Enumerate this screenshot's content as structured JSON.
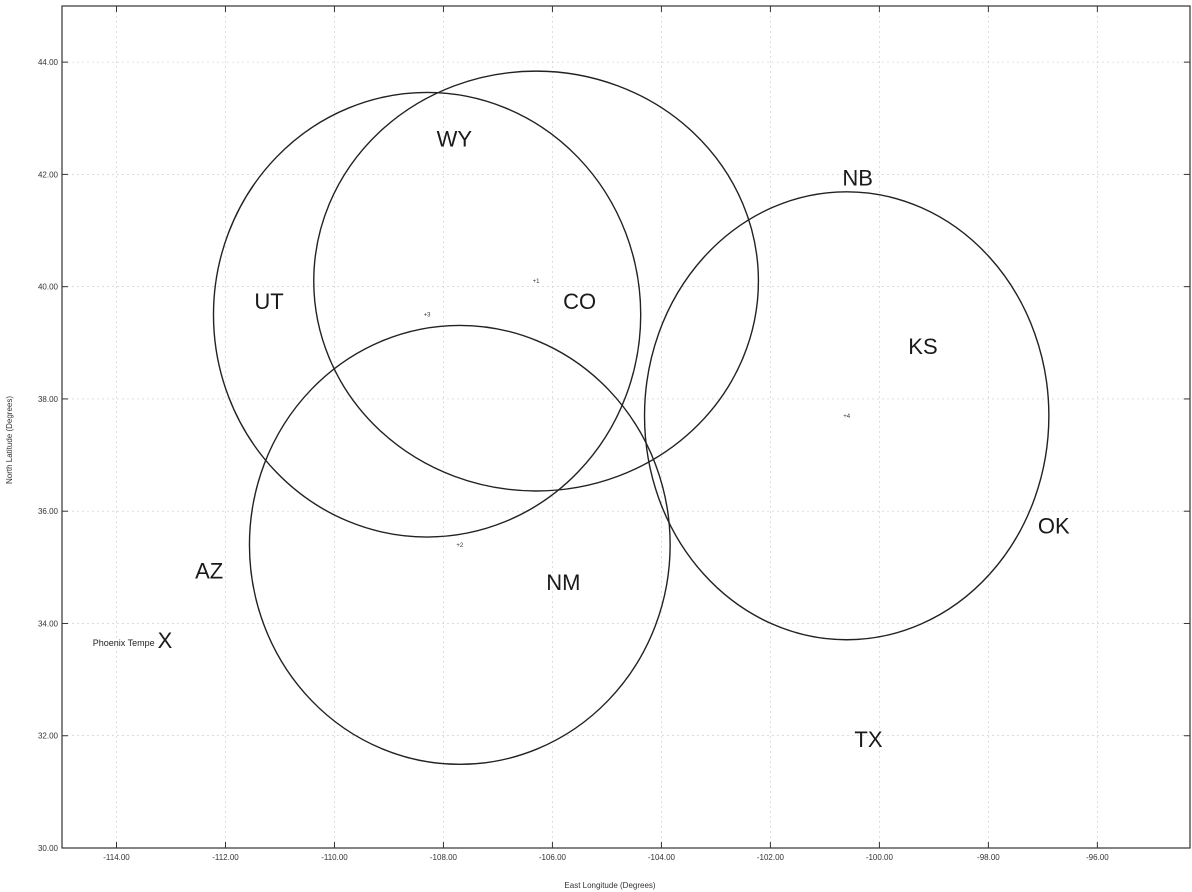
{
  "chart_data": {
    "type": "scatter",
    "xlabel": "East Longitude (Degrees)",
    "ylabel": "North Latitude (Degrees)",
    "xlim": [
      -115.0,
      -94.3
    ],
    "ylim": [
      30.0,
      45.0
    ],
    "x_ticks": [
      {
        "value": -114,
        "label": "-114.00"
      },
      {
        "value": -112,
        "label": "-112.00"
      },
      {
        "value": -110,
        "label": "-110.00"
      },
      {
        "value": -108,
        "label": "-108.00"
      },
      {
        "value": -106,
        "label": "-106.00"
      },
      {
        "value": -104,
        "label": "-104.00"
      },
      {
        "value": -102,
        "label": "-102.00"
      },
      {
        "value": -100,
        "label": "-100.00"
      },
      {
        "value": -98,
        "label": "-98.00"
      },
      {
        "value": -96,
        "label": "-96.00"
      }
    ],
    "y_ticks": [
      {
        "value": 30,
        "label": "30.00"
      },
      {
        "value": 32,
        "label": "32.00"
      },
      {
        "value": 34,
        "label": "34.00"
      },
      {
        "value": 36,
        "label": "36.00"
      },
      {
        "value": 38,
        "label": "38.00"
      },
      {
        "value": 40,
        "label": "40.00"
      },
      {
        "value": 42,
        "label": "42.00"
      },
      {
        "value": 44,
        "label": "44.00"
      }
    ],
    "circles": [
      {
        "name": "c1",
        "cx": -106.3,
        "cy": 40.1,
        "rx": 4.08,
        "ry": 3.74,
        "marker_label": "+1"
      },
      {
        "name": "c2",
        "cx": -108.3,
        "cy": 39.5,
        "rx": 3.92,
        "ry": 3.96,
        "marker_label": "+3"
      },
      {
        "name": "c3",
        "cx": -107.7,
        "cy": 35.4,
        "rx": 3.86,
        "ry": 3.91,
        "marker_label": "+2"
      },
      {
        "name": "c4",
        "cx": -100.6,
        "cy": 37.7,
        "rx": 3.71,
        "ry": 3.99,
        "marker_label": "+4"
      }
    ],
    "labels": [
      {
        "text": "WY",
        "lon": -107.8,
        "lat": 42.5
      },
      {
        "text": "UT",
        "lon": -111.2,
        "lat": 39.6
      },
      {
        "text": "CO",
        "lon": -105.5,
        "lat": 39.6
      },
      {
        "text": "NB",
        "lon": -100.4,
        "lat": 41.8
      },
      {
        "text": "KS",
        "lon": -99.2,
        "lat": 38.8
      },
      {
        "text": "OK",
        "lon": -96.8,
        "lat": 35.6
      },
      {
        "text": "AZ",
        "lon": -112.3,
        "lat": 34.8
      },
      {
        "text": "NM",
        "lon": -105.8,
        "lat": 34.6
      },
      {
        "text": "TX",
        "lon": -100.2,
        "lat": 31.8
      }
    ],
    "places": [
      {
        "text": "Phoenix Tempe",
        "mark": "X",
        "lon": -113.3,
        "lat": 33.6
      }
    ],
    "grid": true
  }
}
